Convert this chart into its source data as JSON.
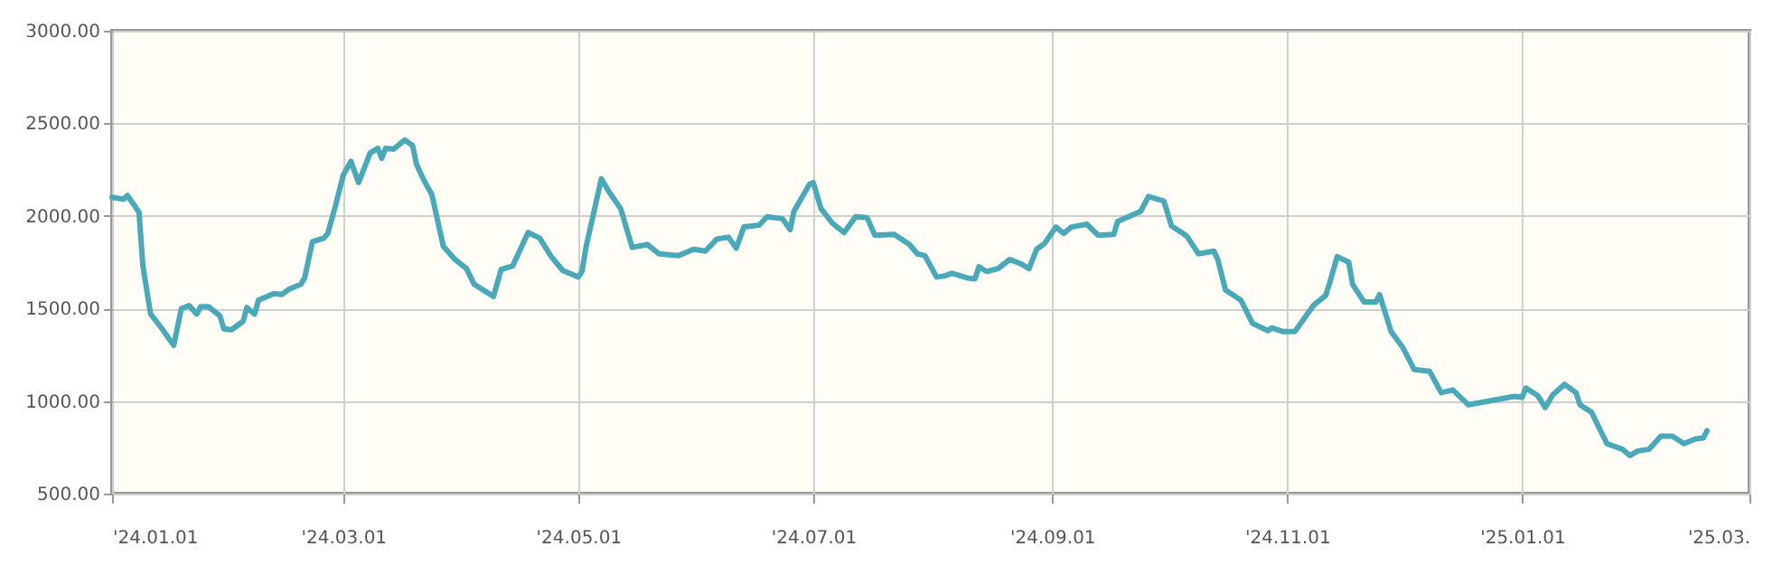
{
  "chart_data": {
    "type": "line",
    "xlim": [
      "2024-01-01",
      "2025-03-01"
    ],
    "ylim": [
      500,
      3000
    ],
    "xticks": [
      {
        "value": "2024-01-01",
        "label": "'24.01.01"
      },
      {
        "value": "2024-03-01",
        "label": "'24.03.01"
      },
      {
        "value": "2024-05-01",
        "label": "'24.05.01"
      },
      {
        "value": "2024-07-01",
        "label": "'24.07.01"
      },
      {
        "value": "2024-09-01",
        "label": "'24.09.01"
      },
      {
        "value": "2024-11-01",
        "label": "'24.11.01"
      },
      {
        "value": "2025-01-01",
        "label": "'25.01.01"
      },
      {
        "value": "2025-03-01",
        "label": "'25.03."
      }
    ],
    "yticks": [
      {
        "value": 500,
        "label": "500.00"
      },
      {
        "value": 1000,
        "label": "1000.00"
      },
      {
        "value": 1500,
        "label": "1500.00"
      },
      {
        "value": 2000,
        "label": "2000.00"
      },
      {
        "value": 2500,
        "label": "2500.00"
      },
      {
        "value": 3000,
        "label": "3000.00"
      }
    ],
    "grid": true,
    "marker": "none",
    "line_style": "solid",
    "x": [
      "2024-01-01",
      "2024-01-04",
      "2024-01-05",
      "2024-01-08",
      "2024-01-09",
      "2024-01-11",
      "2024-01-14",
      "2024-01-17",
      "2024-01-19",
      "2024-01-21",
      "2024-01-23",
      "2024-01-24",
      "2024-01-26",
      "2024-01-29",
      "2024-01-30",
      "2024-02-01",
      "2024-02-04",
      "2024-02-05",
      "2024-02-07",
      "2024-02-08",
      "2024-02-12",
      "2024-02-14",
      "2024-02-16",
      "2024-02-19",
      "2024-02-20",
      "2024-02-22",
      "2024-02-25",
      "2024-02-26",
      "2024-02-28",
      "2024-03-01",
      "2024-03-03",
      "2024-03-05",
      "2024-03-08",
      "2024-03-10",
      "2024-03-11",
      "2024-03-12",
      "2024-03-14",
      "2024-03-17",
      "2024-03-19",
      "2024-03-20",
      "2024-03-22",
      "2024-03-24",
      "2024-03-27",
      "2024-03-30",
      "2024-04-02",
      "2024-04-04",
      "2024-04-09",
      "2024-04-11",
      "2024-04-14",
      "2024-04-18",
      "2024-04-21",
      "2024-04-24",
      "2024-04-27",
      "2024-05-01",
      "2024-05-02",
      "2024-05-03",
      "2024-05-07",
      "2024-05-09",
      "2024-05-12",
      "2024-05-15",
      "2024-05-19",
      "2024-05-22",
      "2024-05-27",
      "2024-05-31",
      "2024-06-03",
      "2024-06-06",
      "2024-06-09",
      "2024-06-11",
      "2024-06-13",
      "2024-06-17",
      "2024-06-19",
      "2024-06-23",
      "2024-06-25",
      "2024-06-26",
      "2024-06-30",
      "2024-07-01",
      "2024-07-03",
      "2024-07-06",
      "2024-07-09",
      "2024-07-12",
      "2024-07-15",
      "2024-07-17",
      "2024-07-22",
      "2024-07-26",
      "2024-07-28",
      "2024-07-30",
      "2024-08-02",
      "2024-08-04",
      "2024-08-06",
      "2024-08-10",
      "2024-08-12",
      "2024-08-13",
      "2024-08-15",
      "2024-08-18",
      "2024-08-21",
      "2024-08-24",
      "2024-08-26",
      "2024-08-28",
      "2024-08-30",
      "2024-09-02",
      "2024-09-04",
      "2024-09-06",
      "2024-09-10",
      "2024-09-13",
      "2024-09-17",
      "2024-09-18",
      "2024-09-24",
      "2024-09-26",
      "2024-09-30",
      "2024-10-02",
      "2024-10-05",
      "2024-10-06",
      "2024-10-09",
      "2024-10-13",
      "2024-10-14",
      "2024-10-16",
      "2024-10-20",
      "2024-10-23",
      "2024-10-27",
      "2024-10-28",
      "2024-10-31",
      "2024-11-03",
      "2024-11-08",
      "2024-11-11",
      "2024-11-12",
      "2024-11-14",
      "2024-11-17",
      "2024-11-18",
      "2024-11-21",
      "2024-11-24",
      "2024-11-25",
      "2024-11-28",
      "2024-12-01",
      "2024-12-04",
      "2024-12-08",
      "2024-12-11",
      "2024-12-14",
      "2024-12-18",
      "2024-12-30",
      "2025-01-01",
      "2025-01-02",
      "2025-01-05",
      "2025-01-07",
      "2025-01-09",
      "2025-01-12",
      "2025-01-15",
      "2025-01-16",
      "2025-01-19",
      "2025-01-23",
      "2025-01-27",
      "2025-01-29",
      "2025-01-31",
      "2025-02-03",
      "2025-02-06",
      "2025-02-09",
      "2025-02-12",
      "2025-02-15",
      "2025-02-17",
      "2025-02-18"
    ],
    "series": [
      {
        "color": "#4aa9b9",
        "values": [
          2100,
          2090,
          2110,
          2020,
          1730,
          1470,
          1390,
          1300,
          1500,
          1515,
          1470,
          1510,
          1510,
          1460,
          1390,
          1385,
          1430,
          1505,
          1470,
          1545,
          1580,
          1575,
          1605,
          1630,
          1665,
          1860,
          1880,
          1905,
          2055,
          2220,
          2295,
          2180,
          2340,
          2365,
          2310,
          2365,
          2360,
          2410,
          2380,
          2280,
          2190,
          2115,
          1835,
          1765,
          1715,
          1630,
          1565,
          1710,
          1730,
          1910,
          1880,
          1780,
          1705,
          1670,
          1700,
          1830,
          2200,
          2130,
          2040,
          1830,
          1845,
          1795,
          1785,
          1820,
          1810,
          1875,
          1885,
          1825,
          1940,
          1950,
          1995,
          1985,
          1925,
          2025,
          2170,
          2180,
          2040,
          1960,
          1910,
          1995,
          1990,
          1895,
          1900,
          1845,
          1795,
          1785,
          1670,
          1675,
          1690,
          1665,
          1660,
          1725,
          1700,
          1715,
          1765,
          1740,
          1715,
          1820,
          1850,
          1940,
          1905,
          1940,
          1955,
          1895,
          1900,
          1970,
          2025,
          2105,
          2080,
          1945,
          1905,
          1890,
          1795,
          1810,
          1765,
          1600,
          1545,
          1420,
          1380,
          1395,
          1375,
          1375,
          1520,
          1570,
          1635,
          1780,
          1750,
          1630,
          1535,
          1535,
          1575,
          1375,
          1290,
          1170,
          1160,
          1045,
          1060,
          980,
          1025,
          1020,
          1070,
          1030,
          965,
          1035,
          1090,
          1045,
          980,
          940,
          770,
          740,
          705,
          730,
          740,
          810,
          810,
          770,
          795,
          800,
          840
        ]
      }
    ]
  }
}
